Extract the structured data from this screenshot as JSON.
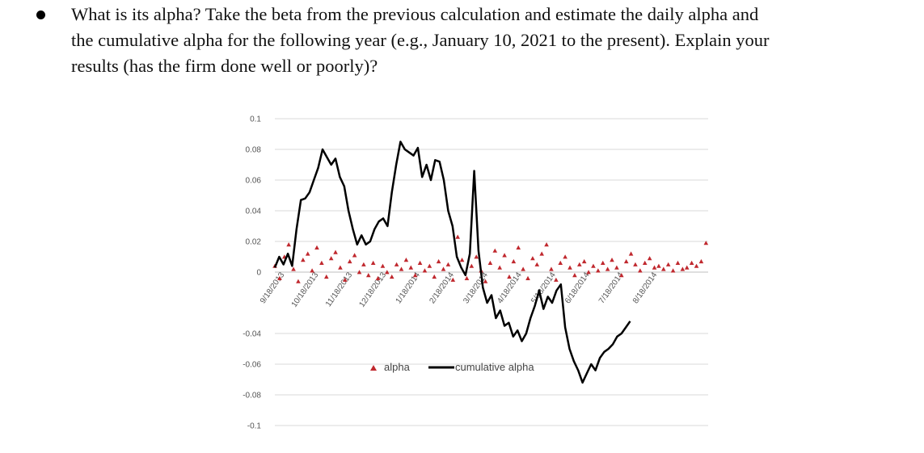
{
  "question": {
    "lines": [
      "What is its alpha? Take the beta from the previous calculation and estimate the daily alpha and",
      "the cumulative alpha for the following year (e.g., January 10, 2021 to the present). Explain your",
      "results (has the firm done well or poorly)?"
    ]
  },
  "chart_data": {
    "type": "scatter",
    "title": "",
    "xlabel": "",
    "ylabel": "",
    "ylim": [
      -0.1,
      0.1
    ],
    "y_ticks": [
      "0.1",
      "0.08",
      "0.06",
      "0.04",
      "0.02",
      "0",
      "-0.04",
      "-0.06",
      "-0.08",
      "-0.1"
    ],
    "x_ticks": [
      "9/18/2013",
      "10/18/2013",
      "11/18/2013",
      "12/18/2013",
      "1/18/2014",
      "2/18/2014",
      "3/18/2014",
      "4/18/2014",
      "5/18/2014",
      "6/18/2014",
      "7/18/2014",
      "8/18/2014"
    ],
    "grid": true,
    "legend": "bottom-center",
    "legend_labels": {
      "alpha": "alpha",
      "cumulative": "cumulative alpha"
    },
    "colors": {
      "alpha": "#c0282e",
      "cumulative": "#000000",
      "grid": "#d9d9d9"
    },
    "series": [
      {
        "name": "alpha",
        "mark": "triangle",
        "points": [
          [
            0.0,
            0.004
          ],
          [
            0.011,
            -0.004
          ],
          [
            0.022,
            0.01
          ],
          [
            0.032,
            0.018
          ],
          [
            0.043,
            0.002
          ],
          [
            0.054,
            -0.006
          ],
          [
            0.065,
            0.008
          ],
          [
            0.076,
            0.012
          ],
          [
            0.086,
            0.001
          ],
          [
            0.097,
            0.016
          ],
          [
            0.108,
            0.006
          ],
          [
            0.119,
            -0.003
          ],
          [
            0.13,
            0.009
          ],
          [
            0.14,
            0.013
          ],
          [
            0.151,
            0.003
          ],
          [
            0.162,
            -0.005
          ],
          [
            0.173,
            0.007
          ],
          [
            0.184,
            0.011
          ],
          [
            0.195,
            0.0
          ],
          [
            0.205,
            0.005
          ],
          [
            0.216,
            -0.002
          ],
          [
            0.227,
            0.006
          ],
          [
            0.238,
            -0.004
          ],
          [
            0.249,
            0.004
          ],
          [
            0.259,
            0.0
          ],
          [
            0.27,
            -0.003
          ],
          [
            0.281,
            0.005
          ],
          [
            0.292,
            0.002
          ],
          [
            0.303,
            0.008
          ],
          [
            0.314,
            0.003
          ],
          [
            0.324,
            -0.002
          ],
          [
            0.335,
            0.006
          ],
          [
            0.346,
            0.001
          ],
          [
            0.357,
            0.004
          ],
          [
            0.368,
            -0.003
          ],
          [
            0.378,
            0.007
          ],
          [
            0.389,
            0.002
          ],
          [
            0.4,
            0.005
          ],
          [
            0.411,
            -0.005
          ],
          [
            0.422,
            0.023
          ],
          [
            0.432,
            0.008
          ],
          [
            0.443,
            -0.004
          ],
          [
            0.454,
            0.004
          ],
          [
            0.465,
            0.01
          ],
          [
            0.476,
            0.001
          ],
          [
            0.486,
            -0.006
          ],
          [
            0.497,
            0.006
          ],
          [
            0.508,
            0.014
          ],
          [
            0.519,
            0.003
          ],
          [
            0.53,
            0.011
          ],
          [
            0.541,
            -0.003
          ],
          [
            0.551,
            0.007
          ],
          [
            0.562,
            0.016
          ],
          [
            0.573,
            0.002
          ],
          [
            0.584,
            -0.004
          ],
          [
            0.595,
            0.009
          ],
          [
            0.605,
            0.005
          ],
          [
            0.616,
            0.012
          ],
          [
            0.627,
            0.018
          ],
          [
            0.638,
            0.002
          ],
          [
            0.649,
            -0.005
          ],
          [
            0.659,
            0.006
          ],
          [
            0.67,
            0.01
          ],
          [
            0.681,
            0.003
          ],
          [
            0.692,
            -0.002
          ],
          [
            0.703,
            0.005
          ],
          [
            0.714,
            0.007
          ],
          [
            0.724,
            0.0
          ],
          [
            0.735,
            0.004
          ],
          [
            0.746,
            0.001
          ],
          [
            0.757,
            0.006
          ],
          [
            0.768,
            0.002
          ],
          [
            0.778,
            0.008
          ],
          [
            0.789,
            0.003
          ],
          [
            0.8,
            -0.002
          ],
          [
            0.811,
            0.007
          ],
          [
            0.822,
            0.012
          ],
          [
            0.832,
            0.005
          ],
          [
            0.843,
            0.001
          ],
          [
            0.854,
            0.006
          ],
          [
            0.865,
            0.009
          ],
          [
            0.876,
            0.003
          ],
          [
            0.886,
            0.004
          ],
          [
            0.897,
            0.002
          ],
          [
            0.908,
            0.005
          ],
          [
            0.919,
            0.001
          ],
          [
            0.93,
            0.006
          ],
          [
            0.941,
            0.002
          ],
          [
            0.951,
            0.003
          ],
          [
            0.962,
            0.006
          ],
          [
            0.973,
            0.004
          ],
          [
            0.984,
            0.007
          ],
          [
            0.995,
            0.019
          ]
        ]
      },
      {
        "name": "cumulative alpha",
        "mark": "line",
        "points": [
          [
            0.0,
            0.003
          ],
          [
            0.01,
            0.01
          ],
          [
            0.02,
            0.005
          ],
          [
            0.03,
            0.012
          ],
          [
            0.04,
            0.004
          ],
          [
            0.05,
            0.028
          ],
          [
            0.06,
            0.047
          ],
          [
            0.07,
            0.048
          ],
          [
            0.08,
            0.052
          ],
          [
            0.09,
            0.06
          ],
          [
            0.1,
            0.068
          ],
          [
            0.11,
            0.08
          ],
          [
            0.12,
            0.075
          ],
          [
            0.13,
            0.07
          ],
          [
            0.14,
            0.074
          ],
          [
            0.15,
            0.062
          ],
          [
            0.16,
            0.056
          ],
          [
            0.17,
            0.04
          ],
          [
            0.18,
            0.028
          ],
          [
            0.19,
            0.018
          ],
          [
            0.2,
            0.024
          ],
          [
            0.21,
            0.018
          ],
          [
            0.22,
            0.02
          ],
          [
            0.23,
            0.028
          ],
          [
            0.24,
            0.033
          ],
          [
            0.25,
            0.035
          ],
          [
            0.26,
            0.03
          ],
          [
            0.27,
            0.052
          ],
          [
            0.28,
            0.07
          ],
          [
            0.29,
            0.085
          ],
          [
            0.3,
            0.08
          ],
          [
            0.31,
            0.078
          ],
          [
            0.32,
            0.076
          ],
          [
            0.33,
            0.081
          ],
          [
            0.34,
            0.062
          ],
          [
            0.35,
            0.07
          ],
          [
            0.36,
            0.06
          ],
          [
            0.37,
            0.073
          ],
          [
            0.38,
            0.072
          ],
          [
            0.39,
            0.06
          ],
          [
            0.4,
            0.04
          ],
          [
            0.41,
            0.03
          ],
          [
            0.42,
            0.01
          ],
          [
            0.43,
            0.003
          ],
          [
            0.44,
            -0.002
          ],
          [
            0.45,
            0.012
          ],
          [
            0.46,
            0.066
          ],
          [
            0.47,
            0.014
          ],
          [
            0.48,
            -0.01
          ],
          [
            0.49,
            -0.02
          ],
          [
            0.5,
            -0.015
          ],
          [
            0.51,
            -0.03
          ],
          [
            0.52,
            -0.025
          ],
          [
            0.53,
            -0.035
          ],
          [
            0.54,
            -0.033
          ],
          [
            0.55,
            -0.042
          ],
          [
            0.56,
            -0.038
          ],
          [
            0.57,
            -0.045
          ],
          [
            0.58,
            -0.04
          ],
          [
            0.59,
            -0.03
          ],
          [
            0.6,
            -0.022
          ],
          [
            0.61,
            -0.012
          ],
          [
            0.62,
            -0.024
          ],
          [
            0.63,
            -0.016
          ],
          [
            0.64,
            -0.02
          ],
          [
            0.65,
            -0.012
          ],
          [
            0.66,
            -0.008
          ],
          [
            0.67,
            -0.036
          ],
          [
            0.68,
            -0.05
          ],
          [
            0.69,
            -0.058
          ],
          [
            0.7,
            -0.064
          ],
          [
            0.71,
            -0.072
          ],
          [
            0.72,
            -0.066
          ],
          [
            0.73,
            -0.06
          ],
          [
            0.74,
            -0.064
          ],
          [
            0.75,
            -0.056
          ],
          [
            0.76,
            -0.052
          ],
          [
            0.77,
            -0.05
          ],
          [
            0.78,
            -0.047
          ],
          [
            0.79,
            -0.042
          ],
          [
            0.8,
            -0.04
          ],
          [
            0.81,
            -0.036
          ],
          [
            0.82,
            -0.032
          ]
        ]
      }
    ]
  }
}
